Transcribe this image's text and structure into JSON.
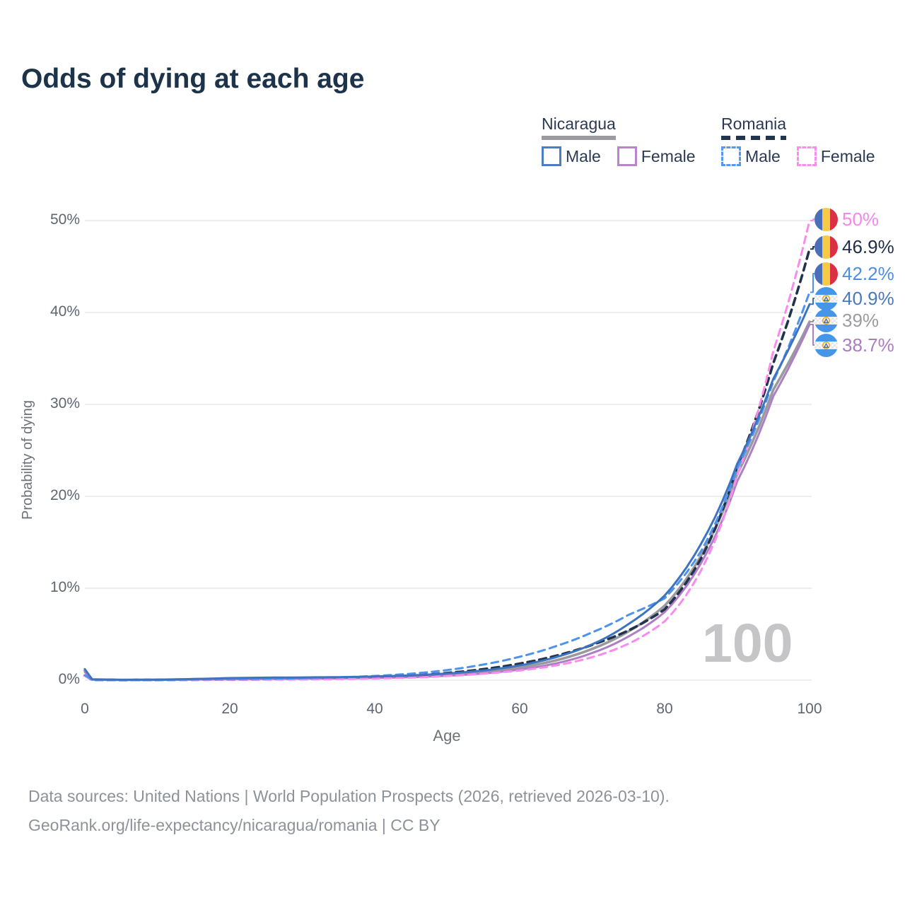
{
  "title": "Odds of dying at each age",
  "legend": {
    "groups": [
      {
        "title": "Nicaragua",
        "line_style": "solid",
        "underline_color": "#9c9ca0",
        "items": [
          {
            "label": "Male",
            "color": "#4a7dc4"
          },
          {
            "label": "Female",
            "color": "#bb84ca"
          }
        ]
      },
      {
        "title": "Romania",
        "line_style": "dashed",
        "underline_color": "#22354e",
        "items": [
          {
            "label": "Male",
            "color": "#5598f0"
          },
          {
            "label": "Female",
            "color": "#fb8df2"
          }
        ]
      }
    ]
  },
  "watermark": "100",
  "footer": {
    "line1": "Data sources: United Nations | World Population Prospects (2026, retrieved 2026-03-10).",
    "line2": "GeoRank.org/life-expectancy/nicaragua/romania | CC BY"
  },
  "chart_data": {
    "type": "line",
    "title": "Odds of dying at each age",
    "xlabel": "Age",
    "ylabel": "Probability of dying",
    "xlim": [
      0,
      100
    ],
    "ylim": [
      0,
      50
    ],
    "x_ticks": [
      0,
      20,
      40,
      60,
      80,
      100
    ],
    "y_ticks": [
      0,
      10,
      20,
      30,
      40,
      50
    ],
    "grid": "horizontal",
    "legend_position": "top-right",
    "x": [
      0,
      1,
      5,
      10,
      15,
      20,
      25,
      30,
      35,
      40,
      45,
      50,
      55,
      60,
      65,
      70,
      75,
      80,
      85,
      90,
      95,
      100
    ],
    "series": [
      {
        "id": "nicaragua-both",
        "country": "Nicaragua",
        "sex": "Both",
        "style": "solid",
        "color": "#9a9a9e",
        "label_color": "#9b9ba0",
        "flag": "nicaragua",
        "end_label": "39%",
        "end_value": 39.0,
        "values": [
          1.05,
          0.08,
          0.035,
          0.045,
          0.1,
          0.17,
          0.21,
          0.23,
          0.26,
          0.32,
          0.43,
          0.6,
          0.9,
          1.38,
          2.15,
          3.4,
          5.3,
          8.1,
          13.5,
          22.4,
          31.6,
          39.0
        ]
      },
      {
        "id": "nicaragua-female",
        "country": "Nicaragua",
        "sex": "Female",
        "style": "solid",
        "color": "#ae7ec4",
        "label_color": "#ac7bc0",
        "flag": "nicaragua",
        "end_label": "38.7%",
        "end_value": 38.7,
        "values": [
          0.9,
          0.07,
          0.03,
          0.04,
          0.07,
          0.1,
          0.13,
          0.16,
          0.19,
          0.24,
          0.33,
          0.48,
          0.74,
          1.15,
          1.82,
          2.95,
          4.75,
          7.4,
          12.7,
          21.6,
          30.9,
          38.7
        ]
      },
      {
        "id": "romania-both",
        "country": "Romania",
        "sex": "Both",
        "style": "dashed",
        "color": "#22334c",
        "label_color": "#1f2d45",
        "flag": "romania",
        "end_label": "46.9%",
        "end_value": 46.9,
        "values": [
          0.5,
          0.035,
          0.018,
          0.025,
          0.05,
          0.07,
          0.1,
          0.14,
          0.21,
          0.32,
          0.49,
          0.78,
          1.2,
          1.8,
          2.65,
          3.85,
          5.4,
          7.7,
          13.2,
          23.2,
          34.5,
          46.9
        ]
      },
      {
        "id": "romania-female",
        "country": "Romania",
        "sex": "Female",
        "style": "dashed",
        "color": "#f98bef",
        "label_color": "#f687ea",
        "flag": "romania",
        "end_label": "50%",
        "end_value": 50.0,
        "values": [
          0.45,
          0.03,
          0.015,
          0.02,
          0.03,
          0.045,
          0.06,
          0.08,
          0.12,
          0.18,
          0.28,
          0.45,
          0.7,
          1.05,
          1.6,
          2.5,
          3.95,
          6.4,
          11.9,
          22.2,
          35.8,
          50.0
        ]
      },
      {
        "id": "romania-male",
        "country": "Romania",
        "sex": "Male",
        "style": "dashed",
        "color": "#4d92ec",
        "label_color": "#4b8ee2",
        "flag": "romania",
        "end_label": "42.2%",
        "end_value": 42.2,
        "values": [
          0.55,
          0.04,
          0.02,
          0.03,
          0.07,
          0.11,
          0.15,
          0.21,
          0.3,
          0.46,
          0.7,
          1.1,
          1.7,
          2.55,
          3.7,
          5.2,
          7.1,
          8.9,
          14.0,
          23.0,
          32.5,
          42.2
        ]
      },
      {
        "id": "nicaragua-male",
        "country": "Nicaragua",
        "sex": "Male",
        "style": "solid",
        "color": "#3d73bf",
        "label_color": "#4a79bd",
        "flag": "nicaragua",
        "end_label": "40.9%",
        "end_value": 40.9,
        "values": [
          1.2,
          0.09,
          0.04,
          0.05,
          0.13,
          0.23,
          0.28,
          0.3,
          0.33,
          0.4,
          0.52,
          0.72,
          1.05,
          1.6,
          2.5,
          3.9,
          6.1,
          9.2,
          14.8,
          23.5,
          32.8,
          40.9
        ]
      }
    ]
  }
}
